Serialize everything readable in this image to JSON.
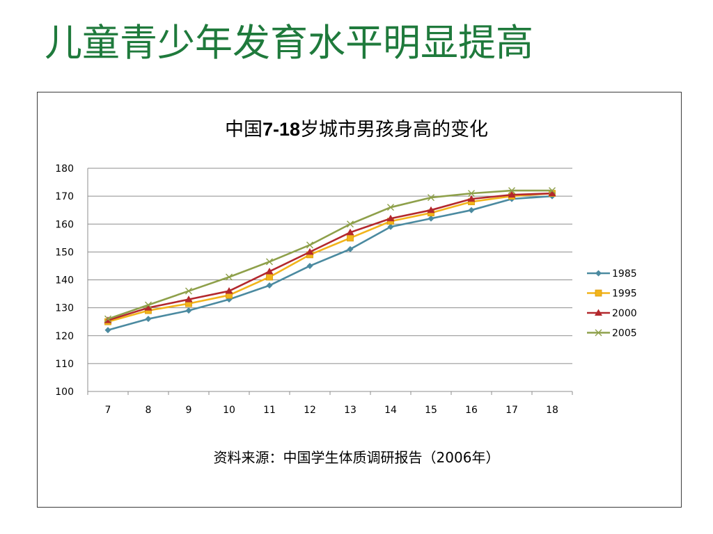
{
  "slide": {
    "title": "儿童青少年发育水平明显提高",
    "title_color": "#1f7a3c"
  },
  "chart": {
    "title_pre": "中国",
    "title_num": "7-18",
    "title_post": "岁城市男孩身高的变化",
    "source": "资料来源：中国学生体质调研报告（2006年）"
  },
  "chart_data": {
    "type": "line",
    "title": "中国7-18岁城市男孩身高的变化",
    "xlabel": "",
    "ylabel": "",
    "categories": [
      "7",
      "8",
      "9",
      "10",
      "11",
      "12",
      "13",
      "14",
      "15",
      "16",
      "17",
      "18"
    ],
    "ylim": [
      100,
      180
    ],
    "yticks": [
      "100",
      "110",
      "120",
      "130",
      "140",
      "150",
      "160",
      "170",
      "180"
    ],
    "grid": true,
    "legend_position": "right",
    "series": [
      {
        "name": "1985",
        "color": "#4b8aa0",
        "marker": "diamond",
        "values": [
          122,
          126,
          129,
          133,
          138,
          145,
          151,
          159,
          162,
          165,
          169,
          170
        ]
      },
      {
        "name": "1995",
        "color": "#f2b41b",
        "marker": "square",
        "values": [
          125,
          129,
          131.5,
          134.5,
          141,
          149,
          155,
          161,
          164,
          168,
          170,
          171
        ]
      },
      {
        "name": "2000",
        "color": "#b3282d",
        "marker": "triangle",
        "values": [
          125.5,
          130,
          133,
          136,
          143,
          150,
          157,
          162,
          165,
          169,
          170.5,
          171
        ]
      },
      {
        "name": "2005",
        "color": "#8ea04a",
        "marker": "x",
        "values": [
          126,
          131,
          136,
          141,
          146.5,
          152.5,
          160,
          166,
          169.5,
          171,
          172,
          172
        ]
      }
    ]
  }
}
